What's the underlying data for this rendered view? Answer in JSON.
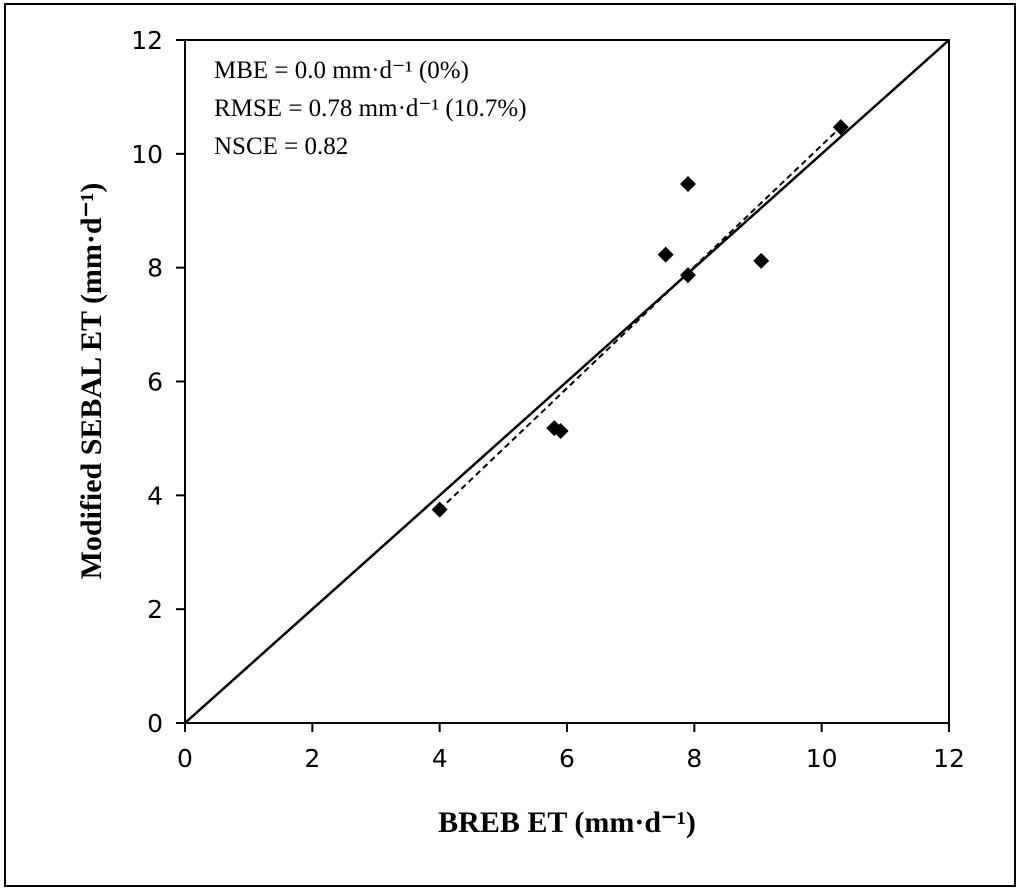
{
  "chart_data": {
    "type": "scatter",
    "title": "",
    "xlabel": "BREB ET (mm·d⁻¹)",
    "ylabel": "Modified SEBAL ET (mm·d⁻¹)",
    "xlim": [
      0,
      12
    ],
    "ylim": [
      0,
      12
    ],
    "xticks": [
      "0",
      "2",
      "4",
      "6",
      "8",
      "10",
      "12"
    ],
    "yticks": [
      "0",
      "2",
      "4",
      "6",
      "8",
      "10",
      "12"
    ],
    "grid": false,
    "series": [
      {
        "name": "observations",
        "marker": "diamond",
        "x": [
          4.0,
          5.8,
          5.9,
          7.55,
          7.9,
          7.9,
          9.05,
          10.3
        ],
        "y": [
          3.75,
          5.18,
          5.13,
          8.23,
          7.87,
          9.47,
          8.12,
          10.47
        ]
      }
    ],
    "lines": [
      {
        "name": "1:1 line",
        "style": "solid",
        "x": [
          0,
          12
        ],
        "y": [
          0,
          12
        ]
      },
      {
        "name": "regression line",
        "style": "dashed",
        "x": [
          4.0,
          10.3
        ],
        "y": [
          3.75,
          10.47
        ]
      }
    ],
    "annotations": [
      "MBE = 0.0 mm·d⁻¹ (0%)",
      "RMSE = 0.78 mm·d⁻¹ (10.7%)",
      "NSCE = 0.82"
    ]
  }
}
